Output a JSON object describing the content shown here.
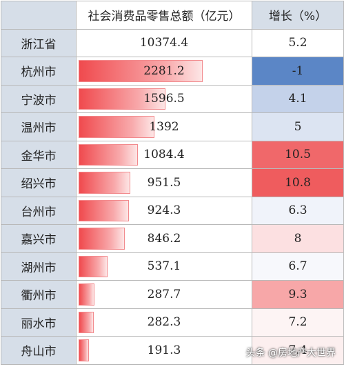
{
  "header": {
    "city": "",
    "sales": "社会消费品零售总额（亿元）",
    "growth": "增长（%）"
  },
  "rows": [
    {
      "city": "浙江省",
      "sales": "10374.4",
      "growth": "5.2",
      "bar": 0,
      "growth_color": "#ffffff"
    },
    {
      "city": "杭州市",
      "sales": "2281.2",
      "growth": "-1",
      "bar": 1.0,
      "growth_color": "#5b86c6"
    },
    {
      "city": "宁波市",
      "sales": "1596.5",
      "growth": "4.1",
      "bar": 0.7,
      "growth_color": "#c4d2ea"
    },
    {
      "city": "温州市",
      "sales": "1392",
      "growth": "5",
      "bar": 0.61,
      "growth_color": "#dce4f2"
    },
    {
      "city": "金华市",
      "sales": "1084.4",
      "growth": "10.5",
      "bar": 0.475,
      "growth_color": "#f0686a"
    },
    {
      "city": "绍兴市",
      "sales": "951.5",
      "growth": "10.8",
      "bar": 0.417,
      "growth_color": "#ef5c5e"
    },
    {
      "city": "台州市",
      "sales": "924.3",
      "growth": "6.3",
      "bar": 0.405,
      "growth_color": "#f0f3fa"
    },
    {
      "city": "嘉兴市",
      "sales": "846.2",
      "growth": "8",
      "bar": 0.371,
      "growth_color": "#fce0e1"
    },
    {
      "city": "湖州市",
      "sales": "537.1",
      "growth": "6.7",
      "bar": 0.235,
      "growth_color": "#f7f8fc"
    },
    {
      "city": "衢州市",
      "sales": "287.7",
      "growth": "9.3",
      "bar": 0.126,
      "growth_color": "#f7a7a8"
    },
    {
      "city": "丽水市",
      "sales": "282.3",
      "growth": "7.2",
      "bar": 0.124,
      "growth_color": "#fdf4f4"
    },
    {
      "city": "舟山市",
      "sales": "191.3",
      "growth": "7.4",
      "bar": 0.084,
      "growth_color": "#fcefef"
    }
  ],
  "watermark": "头条 @房地产大世界"
}
